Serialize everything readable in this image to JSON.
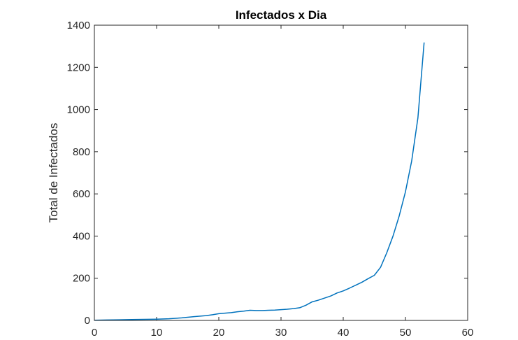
{
  "chart_data": {
    "type": "line",
    "title": "Infectados x Dia",
    "xlabel": "",
    "ylabel": "Total de Infectados",
    "xlim": [
      0,
      60
    ],
    "ylim": [
      0,
      1400
    ],
    "xticks": [
      0,
      10,
      20,
      30,
      40,
      50,
      60
    ],
    "yticks": [
      0,
      200,
      400,
      600,
      800,
      1000,
      1200,
      1400
    ],
    "xtick_labels": [
      "0",
      "10",
      "20",
      "30",
      "40",
      "50",
      "60"
    ],
    "ytick_labels": [
      "0",
      "200",
      "400",
      "600",
      "800",
      "1000",
      "1200",
      "1400"
    ],
    "grid": false,
    "series": [
      {
        "color": "#0072bd",
        "x": [
          0,
          2,
          4,
          6,
          8,
          10,
          12,
          14,
          16,
          18,
          19,
          20,
          22,
          23,
          24,
          25,
          26,
          27,
          28,
          29,
          30,
          31,
          32,
          33,
          34,
          35,
          36,
          37,
          38,
          39,
          40,
          41,
          42,
          43,
          44,
          45,
          46,
          47,
          48,
          49,
          50,
          51,
          52,
          53
        ],
        "values": [
          1,
          2,
          3,
          4,
          5,
          6,
          8,
          12,
          18,
          23,
          27,
          32,
          37,
          41,
          44,
          48,
          47,
          47,
          48,
          49,
          51,
          53,
          56,
          60,
          72,
          88,
          96,
          106,
          116,
          130,
          140,
          153,
          167,
          181,
          198,
          214,
          252,
          321,
          400,
          496,
          610,
          756,
          960,
          1318
        ]
      }
    ]
  }
}
